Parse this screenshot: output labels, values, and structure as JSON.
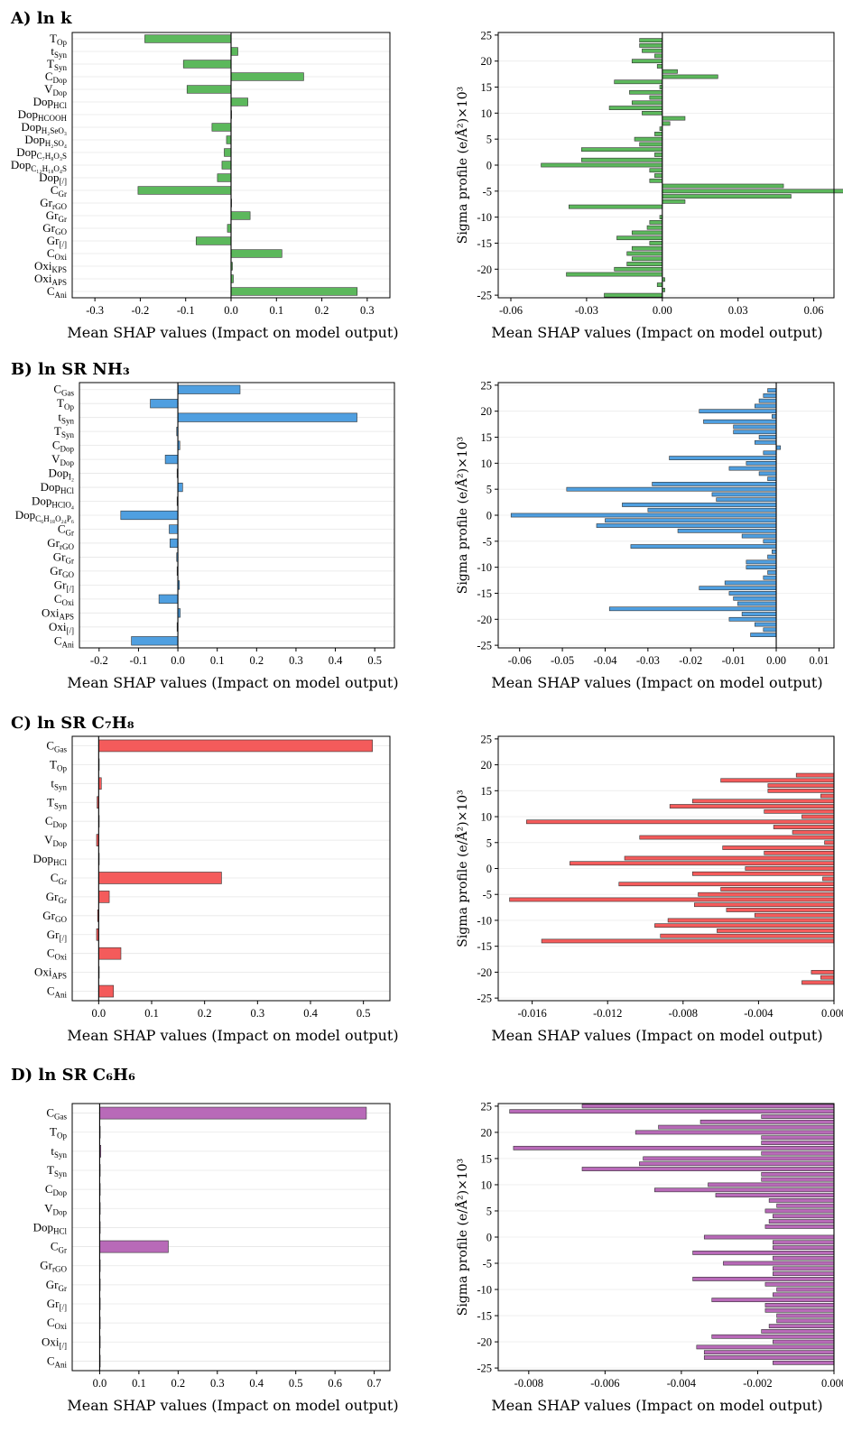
{
  "colors": {
    "green": "#5cb85c",
    "blue": "#4f9fe0",
    "red": "#f45b5b",
    "purple": "#b86ab8"
  },
  "chart_data": [
    {
      "id": "A-left",
      "panel_title": "A) ln k",
      "type": "bar",
      "orientation": "horizontal",
      "color": "green",
      "features": [
        [
          "T",
          "Op"
        ],
        [
          "t",
          "Syn"
        ],
        [
          "T",
          "Syn"
        ],
        [
          "C",
          "Dop"
        ],
        [
          "V",
          "Dop"
        ],
        [
          "Dop",
          "HCl"
        ],
        [
          "Dop",
          "HCOOH"
        ],
        [
          "Dop",
          "H₂SeO₃"
        ],
        [
          "Dop",
          "H₂SO₄"
        ],
        [
          "Dop",
          "C₇H₈O₃S"
        ],
        [
          "Dop",
          "C₁₂H₁₈O₄S"
        ],
        [
          "Dop",
          "[/]"
        ],
        [
          "C",
          "Gr"
        ],
        [
          "Gr",
          "rGO"
        ],
        [
          "Gr",
          "Gr"
        ],
        [
          "Gr",
          "GO"
        ],
        [
          "Gr",
          "[/]"
        ],
        [
          "C",
          "Oxi"
        ],
        [
          "Oxi",
          "KPS"
        ],
        [
          "Oxi",
          "APS"
        ],
        [
          "C",
          "Ani"
        ]
      ],
      "values": [
        -0.19,
        0.015,
        -0.105,
        0.16,
        -0.097,
        0.037,
        0.0,
        -0.042,
        -0.01,
        -0.015,
        -0.02,
        -0.03,
        -0.205,
        0.0,
        0.042,
        -0.008,
        -0.077,
        0.112,
        0.003,
        0.005,
        0.278
      ],
      "xlim": [
        -0.35,
        0.35
      ],
      "xticks": [
        -0.3,
        -0.2,
        -0.1,
        0.0,
        0.1,
        0.2,
        0.3
      ],
      "xlabel": "Mean SHAP values (Impact on model output)"
    },
    {
      "id": "A-right",
      "type": "bar",
      "orientation": "horizontal",
      "color": "green",
      "ylabel": "Sigma profile (e/Å²)×10³",
      "y": [
        24,
        23,
        22,
        21,
        20,
        19,
        18,
        17,
        16,
        15,
        14,
        13,
        12,
        11,
        10,
        9,
        8,
        7,
        6,
        5,
        4,
        3,
        2,
        1,
        0,
        -1,
        -2,
        -3,
        -4,
        -5,
        -6,
        -7,
        -8,
        -9,
        -10,
        -11,
        -12,
        -13,
        -14,
        -15,
        -16,
        -17,
        -18,
        -19,
        -20,
        -21,
        -22,
        -23,
        -24,
        -25
      ],
      "values": [
        -0.009,
        -0.009,
        -0.008,
        -0.003,
        -0.012,
        -0.002,
        0.006,
        0.022,
        -0.019,
        -0.001,
        -0.013,
        -0.005,
        -0.012,
        -0.021,
        -0.008,
        0.009,
        0.003,
        -0.001,
        -0.003,
        -0.011,
        -0.009,
        -0.032,
        -0.003,
        -0.032,
        -0.048,
        -0.005,
        -0.003,
        -0.005,
        0.048,
        0.072,
        0.051,
        0.009,
        -0.037,
        0.0,
        -0.001,
        -0.005,
        -0.006,
        -0.012,
        -0.018,
        -0.005,
        -0.012,
        -0.014,
        -0.012,
        -0.014,
        -0.019,
        -0.038,
        0.001,
        -0.002,
        0.001,
        -0.023
      ],
      "ylim": [
        -25.5,
        25.5
      ],
      "yticks": [
        25,
        20,
        15,
        10,
        5,
        0,
        -5,
        -10,
        -15,
        -20,
        -25
      ],
      "xlim": [
        -0.065,
        0.068
      ],
      "xticks": [
        -0.06,
        -0.03,
        0.0,
        0.03,
        0.06
      ],
      "xtick_labels": [
        "-0.06",
        "-0.03",
        "0.00",
        "0.03",
        "0.06"
      ],
      "xlabel": "Mean SHAP values (Impact on model output)"
    },
    {
      "id": "B-left",
      "panel_title": "B) ln SR NH₃",
      "type": "bar",
      "orientation": "horizontal",
      "color": "blue",
      "features": [
        [
          "C",
          "Gas"
        ],
        [
          "T",
          "Op"
        ],
        [
          "t",
          "Syn"
        ],
        [
          "T",
          "Syn"
        ],
        [
          "C",
          "Dop"
        ],
        [
          "V",
          "Dop"
        ],
        [
          "Dop",
          "I₂"
        ],
        [
          "Dop",
          "HCl"
        ],
        [
          "Dop",
          "HClO₄"
        ],
        [
          "Dop",
          "C₆H₁₈O₂₄P₆"
        ],
        [
          "C",
          "Gr"
        ],
        [
          "Gr",
          "rGO"
        ],
        [
          "Gr",
          "Gr"
        ],
        [
          "Gr",
          "GO"
        ],
        [
          "Gr",
          "[/]"
        ],
        [
          "C",
          "Oxi"
        ],
        [
          "Oxi",
          "APS"
        ],
        [
          "Oxi",
          "[/]"
        ],
        [
          "C",
          "Ani"
        ]
      ],
      "values": [
        0.158,
        -0.07,
        0.455,
        -0.003,
        0.005,
        -0.032,
        -0.002,
        0.012,
        -0.002,
        -0.145,
        -0.022,
        -0.02,
        -0.003,
        -0.002,
        0.004,
        -0.048,
        0.006,
        -0.002,
        -0.118
      ],
      "xlim": [
        -0.25,
        0.55
      ],
      "xticks": [
        -0.2,
        -0.1,
        0.0,
        0.1,
        0.2,
        0.3,
        0.4,
        0.5
      ],
      "xlabel": "Mean SHAP values (Impact on model output)"
    },
    {
      "id": "B-right",
      "type": "bar",
      "orientation": "horizontal",
      "color": "blue",
      "ylabel": "Sigma profile (e/Å²)×10³",
      "y": [
        24,
        23,
        22,
        21,
        20,
        19,
        18,
        17,
        16,
        15,
        14,
        13,
        12,
        11,
        10,
        9,
        8,
        7,
        6,
        5,
        4,
        3,
        2,
        1,
        0,
        -1,
        -2,
        -3,
        -4,
        -5,
        -6,
        -7,
        -8,
        -9,
        -10,
        -11,
        -12,
        -13,
        -14,
        -15,
        -16,
        -17,
        -18,
        -19,
        -20,
        -21,
        -22,
        -23,
        -24,
        -25
      ],
      "values": [
        -0.002,
        -0.003,
        -0.004,
        -0.005,
        -0.018,
        -0.001,
        -0.017,
        -0.01,
        -0.01,
        -0.004,
        -0.005,
        0.001,
        -0.003,
        -0.025,
        -0.007,
        -0.011,
        -0.004,
        -0.002,
        -0.029,
        -0.049,
        -0.015,
        -0.014,
        -0.036,
        -0.03,
        -0.062,
        -0.04,
        -0.042,
        -0.023,
        -0.008,
        -0.003,
        -0.034,
        -0.001,
        -0.002,
        -0.007,
        -0.007,
        -0.002,
        -0.003,
        -0.012,
        -0.018,
        -0.011,
        -0.01,
        -0.009,
        -0.039,
        -0.008,
        -0.011,
        -0.005,
        -0.003,
        -0.006,
        0.0,
        0.0
      ],
      "ylim": [
        -25.5,
        25.5
      ],
      "yticks": [
        25,
        20,
        15,
        10,
        5,
        0,
        -5,
        -10,
        -15,
        -20,
        -25
      ],
      "xlim": [
        -0.065,
        0.0135
      ],
      "xticks": [
        -0.06,
        -0.05,
        -0.04,
        -0.03,
        -0.02,
        -0.01,
        0.0,
        0.01
      ],
      "xtick_labels": [
        "-0.06",
        "-0.05",
        "-0.04",
        "-0.03",
        "-0.02",
        "-0.01",
        "0.00",
        "0.01"
      ],
      "xlabel": "Mean SHAP values (Impact on model output)"
    },
    {
      "id": "C-left",
      "panel_title": "C) ln SR C₇H₈",
      "type": "bar",
      "orientation": "horizontal",
      "color": "red",
      "features": [
        [
          "C",
          "Gas"
        ],
        [
          "T",
          "Op"
        ],
        [
          "t",
          "Syn"
        ],
        [
          "T",
          "Syn"
        ],
        [
          "C",
          "Dop"
        ],
        [
          "V",
          "Dop"
        ],
        [
          "Dop",
          "HCl"
        ],
        [
          "C",
          "Gr"
        ],
        [
          "Gr",
          "Gr"
        ],
        [
          "Gr",
          "GO"
        ],
        [
          "Gr",
          "[/]"
        ],
        [
          "C",
          "Oxi"
        ],
        [
          "Oxi",
          "APS"
        ],
        [
          "C",
          "Ani"
        ]
      ],
      "values": [
        0.517,
        0.0,
        0.005,
        -0.003,
        0.0,
        -0.004,
        0.0,
        0.232,
        0.02,
        -0.002,
        -0.004,
        0.042,
        0.0,
        0.028
      ],
      "xlim": [
        -0.05,
        0.55
      ],
      "xticks": [
        0.0,
        0.1,
        0.2,
        0.3,
        0.4,
        0.5
      ],
      "xlabel": "Mean SHAP values (Impact on model output)"
    },
    {
      "id": "C-right",
      "type": "bar",
      "orientation": "horizontal",
      "color": "red",
      "ylabel": "Sigma profile (e/Å²)×10³",
      "y": [
        18,
        17,
        16,
        15,
        14,
        13,
        12,
        11,
        10,
        9,
        8,
        7,
        6,
        5,
        4,
        3,
        2,
        1,
        0,
        -1,
        -2,
        -3,
        -4,
        -5,
        -6,
        -7,
        -8,
        -9,
        -10,
        -11,
        -12,
        -13,
        -14,
        -15,
        -16,
        -17,
        -18,
        -19,
        -20,
        -21,
        -22,
        -23,
        -24,
        -25
      ],
      "values": [
        -0.002,
        -0.006,
        -0.0035,
        -0.0035,
        -0.0007,
        -0.0075,
        -0.0087,
        -0.0037,
        -0.0017,
        -0.0163,
        -0.0032,
        -0.0022,
        -0.0103,
        -0.0005,
        -0.0059,
        -0.0037,
        -0.0111,
        -0.014,
        -0.0047,
        -0.0075,
        -0.0006,
        -0.0114,
        -0.006,
        -0.0072,
        -0.0172,
        -0.0074,
        -0.0057,
        -0.0042,
        -0.0088,
        -0.0095,
        -0.0062,
        -0.0092,
        -0.0155,
        0.0,
        0.0,
        0.0,
        0.0,
        0.0,
        -0.0012,
        -0.0007,
        -0.0017,
        0.0,
        0.0,
        0.0
      ],
      "ylim": [
        -25.5,
        25.5
      ],
      "yticks": [
        25,
        20,
        15,
        10,
        5,
        0,
        -5,
        -10,
        -15,
        -20,
        -25
      ],
      "xlim": [
        -0.0178,
        0.0
      ],
      "xticks": [
        -0.016,
        -0.012,
        -0.008,
        -0.004,
        0.0
      ],
      "xtick_labels": [
        "-0.016",
        "-0.012",
        "-0.008",
        "-0.004",
        "0.000"
      ],
      "xlabel": "Mean SHAP values (Impact on model output)"
    },
    {
      "id": "D-left",
      "panel_title": "D) ln SR C₆H₆",
      "type": "bar",
      "orientation": "horizontal",
      "color": "purple",
      "features": [
        [
          "C",
          "Gas"
        ],
        [
          "T",
          "Op"
        ],
        [
          "t",
          "Syn"
        ],
        [
          "T",
          "Syn"
        ],
        [
          "C",
          "Dop"
        ],
        [
          "V",
          "Dop"
        ],
        [
          "Dop",
          "HCl"
        ],
        [
          "C",
          "Gr"
        ],
        [
          "Gr",
          "rGO"
        ],
        [
          "Gr",
          "Gr"
        ],
        [
          "Gr",
          "[/]"
        ],
        [
          "C",
          "Oxi"
        ],
        [
          "Oxi",
          "[/]"
        ],
        [
          "C",
          "Ani"
        ]
      ],
      "values": [
        0.68,
        0.0,
        0.003,
        0.0,
        0.0,
        0.0,
        0.0,
        0.175,
        0.0,
        0.0,
        0.001,
        0.001,
        0.0,
        0.001
      ],
      "xlim": [
        -0.07,
        0.74
      ],
      "xticks": [
        0.0,
        0.1,
        0.2,
        0.3,
        0.4,
        0.5,
        0.6,
        0.7
      ],
      "xlabel": "Mean SHAP values (Impact on model output)"
    },
    {
      "id": "D-right",
      "type": "bar",
      "orientation": "horizontal",
      "color": "purple",
      "ylabel": "Sigma profile (e/Å²)×10³",
      "y": [
        25,
        24,
        23,
        22,
        21,
        20,
        19,
        18,
        17,
        16,
        15,
        14,
        13,
        12,
        11,
        10,
        9,
        8,
        7,
        6,
        5,
        4,
        3,
        2,
        1,
        0,
        -1,
        -2,
        -3,
        -4,
        -5,
        -6,
        -7,
        -8,
        -9,
        -10,
        -11,
        -12,
        -13,
        -14,
        -15,
        -16,
        -17,
        -18,
        -19,
        -20,
        -21,
        -22,
        -23,
        -24
      ],
      "values": [
        -0.0066,
        -0.0085,
        -0.0019,
        -0.0035,
        -0.0046,
        -0.0052,
        -0.0019,
        -0.0019,
        -0.0084,
        -0.0019,
        -0.005,
        -0.0051,
        -0.0066,
        -0.0019,
        -0.0019,
        -0.0033,
        -0.0047,
        -0.0031,
        -0.0017,
        -0.0015,
        -0.0018,
        -0.0016,
        -0.0017,
        -0.0018,
        0.0,
        -0.0034,
        -0.0016,
        -0.0016,
        -0.0037,
        -0.0016,
        -0.0029,
        -0.0016,
        -0.0016,
        -0.0037,
        -0.0018,
        -0.0015,
        -0.0016,
        -0.0032,
        -0.0018,
        -0.0018,
        -0.0015,
        -0.0015,
        -0.0017,
        -0.0019,
        -0.0032,
        -0.0016,
        -0.0036,
        -0.0034,
        -0.0034,
        -0.0016
      ],
      "ylim": [
        -25.5,
        25.5
      ],
      "yticks": [
        25,
        20,
        15,
        10,
        5,
        0,
        -5,
        -10,
        -15,
        -20,
        -25
      ],
      "xlim": [
        -0.0088,
        0.0
      ],
      "xticks": [
        -0.008,
        -0.006,
        -0.004,
        -0.002,
        0.0
      ],
      "xtick_labels": [
        "-0.008",
        "-0.006",
        "-0.004",
        "-0.002",
        "0.000"
      ],
      "xlabel": "Mean SHAP values (Impact on model output)"
    }
  ]
}
